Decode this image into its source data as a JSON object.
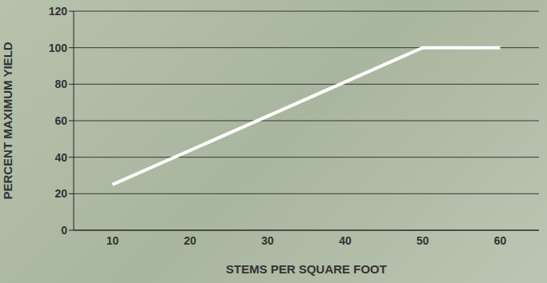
{
  "chart_data": {
    "type": "line",
    "x_label": "STEMS PER SQUARE FOOT",
    "y_label": "PERCENT MAXIMUM YIELD",
    "x": [
      10,
      50,
      60
    ],
    "values": [
      25,
      100,
      100
    ],
    "color": "#ffffff",
    "xlim": [
      5,
      65
    ],
    "xticks": [
      10,
      20,
      30,
      40,
      50,
      60
    ],
    "ylim": [
      0,
      120
    ],
    "yticks": [
      0,
      20,
      40,
      60,
      80,
      100,
      120
    ],
    "grid": true
  }
}
